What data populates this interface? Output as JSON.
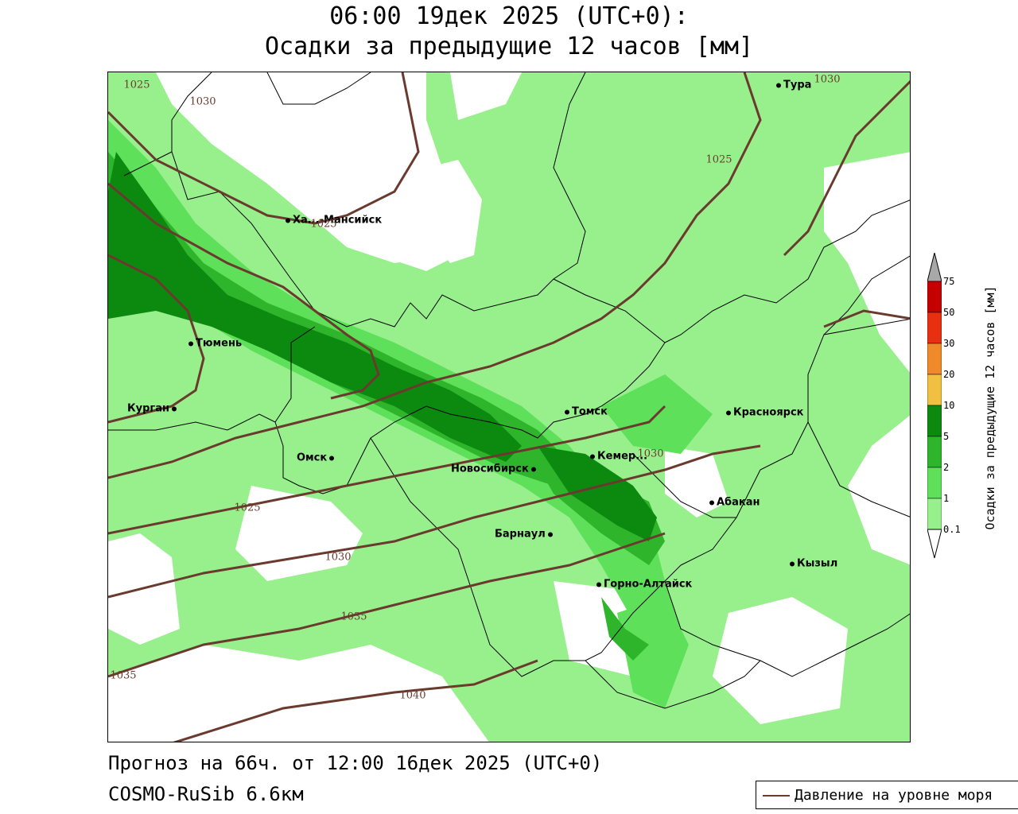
{
  "title": {
    "line1": "06:00 19дек 2025 (UTC+0):",
    "line2": "Осадки за предыдущие 12 часов [мм]"
  },
  "cities": [
    {
      "name": "Тура"
    },
    {
      "name": "Ха...-Мансийск"
    },
    {
      "name": "Тюмень"
    },
    {
      "name": "Курган"
    },
    {
      "name": "Омск"
    },
    {
      "name": "Томск"
    },
    {
      "name": "Красноярск"
    },
    {
      "name": "Кемер..."
    },
    {
      "name": "Новосибирск"
    },
    {
      "name": "Абакан"
    },
    {
      "name": "Барнаул"
    },
    {
      "name": "Кызыл"
    },
    {
      "name": "Горно-Алтайск"
    }
  ],
  "isobars": [
    {
      "label": "1025"
    },
    {
      "label": "1030"
    },
    {
      "label": "1030"
    },
    {
      "label": "1025"
    },
    {
      "label": "1025"
    },
    {
      "label": "1030"
    },
    {
      "label": "1025"
    },
    {
      "label": "1030"
    },
    {
      "label": "1035"
    },
    {
      "label": "1035"
    },
    {
      "label": "1040"
    }
  ],
  "legend": {
    "title": "Осадки за предыдущие 12 часов [мм]",
    "levels": [
      "75",
      "50",
      "30",
      "20",
      "10",
      "5",
      "2",
      "1",
      "0.1"
    ],
    "colors": {
      "0.1": "#98f08c",
      "1": "#5ee05a",
      "2": "#2fb52c",
      "5": "#0c8a10",
      "10": "#f2c040",
      "20": "#f08a28",
      "30": "#e83010",
      "50": "#c40000",
      "75": "#8c0000",
      "over": "#a8a8a8"
    }
  },
  "footer": {
    "forecast": "Прогноз на 66ч. от 12:00 16дек 2025 (UTC+0)",
    "model": "COSMO-RuSib 6.6км",
    "pressure_legend": "Давление на уровне моря"
  }
}
